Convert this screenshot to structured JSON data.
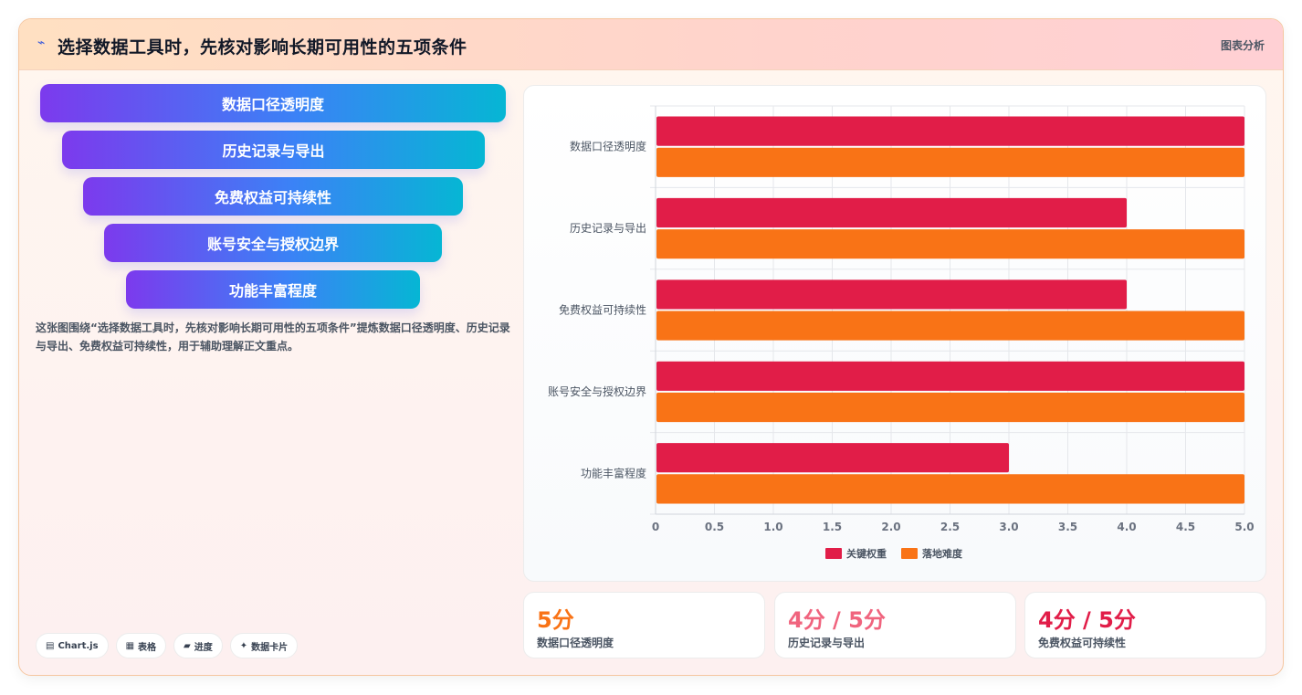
{
  "header": {
    "title": "选择数据工具时，先核对影响长期可用性的五项条件",
    "tag": "图表分析"
  },
  "funnel": [
    "数据口径透明度",
    "历史记录与导出",
    "免费权益可持续性",
    "账号安全与授权边界",
    "功能丰富程度"
  ],
  "description": "这张图围绕“选择数据工具时，先核对影响长期可用性的五项条件”提炼数据口径透明度、历史记录与导出、免费权益可持续性，用于辅助理解正文重点。",
  "chips": [
    {
      "icon": "database-icon",
      "glyph": "▤",
      "label": "Chart.js"
    },
    {
      "icon": "table-icon",
      "glyph": "▦",
      "label": "表格"
    },
    {
      "icon": "progress-icon",
      "glyph": "▰",
      "label": "进度"
    },
    {
      "icon": "sparkle-icon",
      "glyph": "✦",
      "label": "数据卡片"
    }
  ],
  "chart_data": {
    "type": "bar",
    "orientation": "horizontal",
    "categories": [
      "数据口径透明度",
      "历史记录与导出",
      "免费权益可持续性",
      "账号安全与授权边界",
      "功能丰富程度"
    ],
    "series": [
      {
        "name": "关键权重",
        "values": [
          5,
          4,
          4,
          5,
          3
        ],
        "color": "#e11d48"
      },
      {
        "name": "落地难度",
        "values": [
          5,
          5,
          5,
          5,
          5
        ],
        "color": "#f97316"
      }
    ],
    "xlim": [
      0,
      5
    ],
    "xticks": [
      "0",
      "0.5",
      "1.0",
      "1.5",
      "2.0",
      "2.5",
      "3.0",
      "3.5",
      "4.0",
      "4.5",
      "5.0"
    ],
    "grid": true,
    "legend": "bottom"
  },
  "stats": [
    {
      "value": "5分",
      "label": "数据口径透明度",
      "color": "#f97316"
    },
    {
      "value": "4分 / 5分",
      "label": "历史记录与导出",
      "color": "#f0647e"
    },
    {
      "value": "4分 / 5分",
      "label": "免费权益可持续性",
      "color": "#e11d48"
    }
  ]
}
